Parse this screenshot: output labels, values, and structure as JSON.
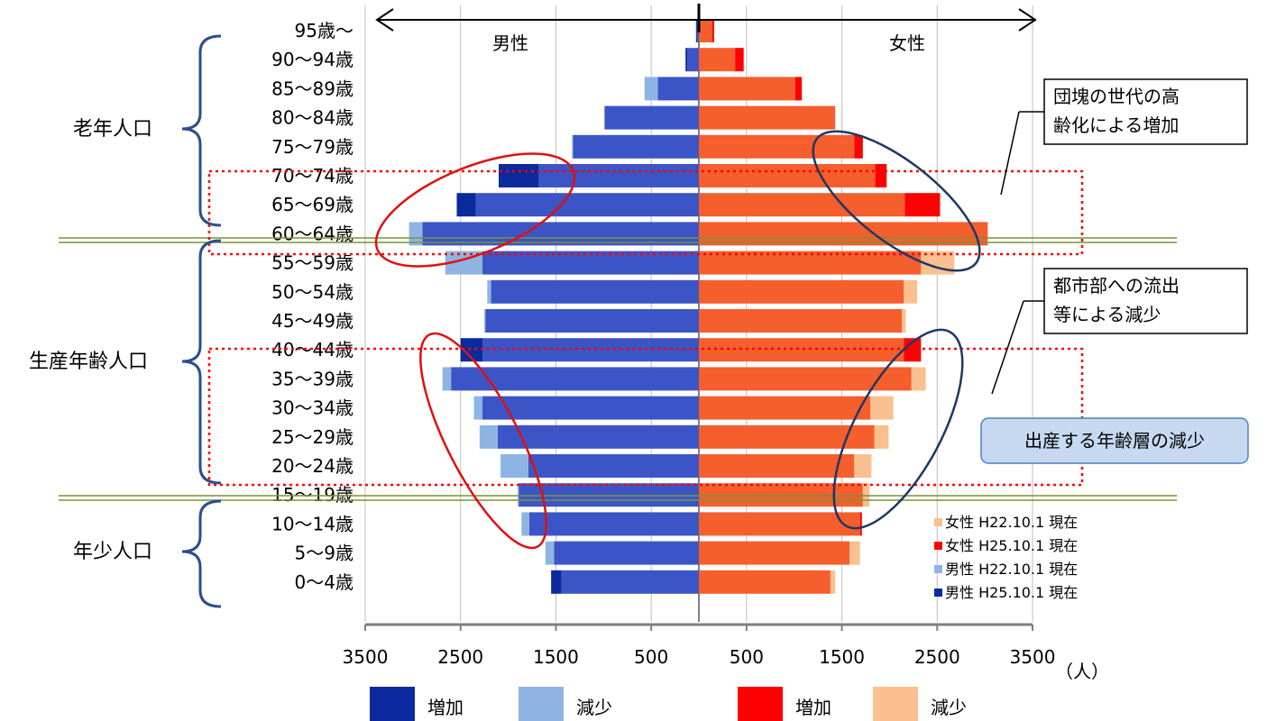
{
  "chart_data": {
    "type": "bar",
    "subtype": "population-pyramid",
    "categories": [
      "95歳～",
      "90～94歳",
      "85～89歳",
      "80～84歳",
      "75～79歳",
      "70～74歳",
      "65～69歳",
      "60～64歳",
      "55～59歳",
      "50～54歳",
      "45～49歳",
      "40～44歳",
      "35～39歳",
      "30～34歳",
      "25～29歳",
      "20～24歳",
      "15～19歳",
      "10～14歳",
      "5～9歳",
      "0～4歳"
    ],
    "series": [
      {
        "name": "男性 H25.10.1 現在",
        "sex": "male",
        "color": "#3c55c6",
        "values": [
          30,
          140,
          430,
          990,
          1320,
          2100,
          2540,
          2900,
          2270,
          2180,
          2240,
          2500,
          2600,
          2270,
          2110,
          1790,
          1890,
          1780,
          1520,
          1550
        ]
      },
      {
        "name": "男性 H22.10.1 現在",
        "sex": "male",
        "color": "#8eb4e3",
        "values": [
          20,
          120,
          570,
          990,
          1330,
          1680,
          2340,
          3040,
          2660,
          2220,
          2250,
          2270,
          2690,
          2360,
          2300,
          2080,
          1900,
          1860,
          1610,
          1440
        ]
      },
      {
        "name": "女性 H25.10.1 現在",
        "sex": "female",
        "color": "#f55e2d",
        "values": [
          160,
          470,
          1080,
          1430,
          1720,
          1970,
          2530,
          3030,
          2330,
          2150,
          2130,
          2330,
          2230,
          1800,
          1840,
          1630,
          1720,
          1710,
          1580,
          1380
        ]
      },
      {
        "name": "女性 H22.10.1 現在",
        "sex": "female",
        "color": "#fac090",
        "values": [
          140,
          380,
          1010,
          1430,
          1630,
          1850,
          2160,
          3030,
          2680,
          2290,
          2170,
          2150,
          2380,
          2040,
          1990,
          1810,
          1790,
          1690,
          1690,
          1430
        ]
      }
    ],
    "xlim": [
      -3500,
      3500
    ],
    "xticks": [
      "3500",
      "2500",
      "1500",
      "500",
      "500",
      "1500",
      "2500",
      "3500"
    ],
    "unit_label": "（人）",
    "side_labels": {
      "male": "男性",
      "female": "女性"
    },
    "group_labels": [
      "老年人口",
      "生産年齢人口",
      "年少人口"
    ],
    "annotations": [
      "団塊の世代の高\n齢化による増加",
      "都市部への流出\n等による減少",
      "出産する年齢層の減少"
    ],
    "legend": {
      "position": "bottom-right-inside",
      "entries": [
        "女性 H22.10.1 現在",
        "女性 H25.10.1 現在",
        "男性 H22.10.1 現在",
        "男性 H25.10.1 現在"
      ]
    },
    "bottom_legend": [
      {
        "label": "増加",
        "color": "#0a2a9e"
      },
      {
        "label": "減少",
        "color": "#8eb4e3"
      },
      {
        "label": "増加",
        "color": "#ff0000"
      },
      {
        "label": "減少",
        "color": "#fac090"
      }
    ],
    "colors": {
      "male_increase": "#0a2a9e",
      "male_decrease": "#8eb4e3",
      "female_increase": "#ff0000",
      "female_decrease": "#fac090"
    },
    "grid": true
  }
}
